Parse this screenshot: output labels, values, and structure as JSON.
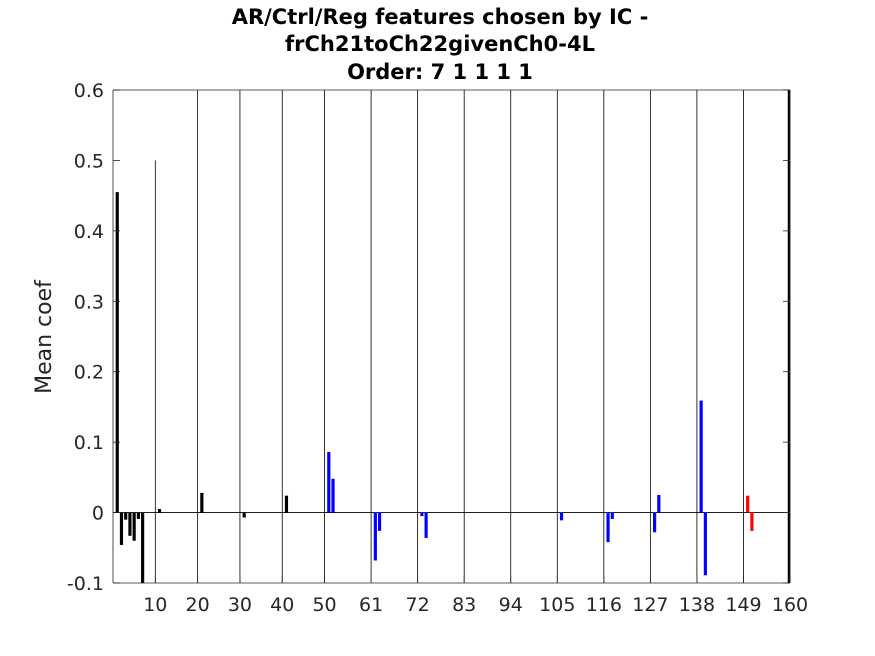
{
  "chart_data": {
    "type": "bar",
    "title": [
      "AR/Ctrl/Reg features chosen by IC -",
      "frCh21toCh22givenCh0-4L",
      "Order: 7 1 1 1 1"
    ],
    "xlabel": "",
    "ylabel": "Mean coef",
    "xlim": [
      0,
      160
    ],
    "ylim": [
      -0.1,
      0.6
    ],
    "grid": "vertical lines at group boundaries",
    "xticks": [
      10,
      20,
      30,
      40,
      50,
      61,
      72,
      83,
      94,
      105,
      116,
      127,
      138,
      149,
      160
    ],
    "yticks": [
      -0.1,
      0,
      0.1,
      0.2,
      0.3,
      0.4,
      0.5,
      0.6
    ],
    "ytick_labels": [
      "-0.1",
      "0",
      "0.1",
      "0.2",
      "0.3",
      "0.4",
      "0.5",
      "0.6"
    ],
    "group_boundaries": [
      10,
      20,
      30,
      40,
      50,
      61,
      72,
      83,
      94,
      105,
      116,
      127,
      138,
      149,
      160
    ],
    "special_lines": [
      {
        "x": 10,
        "from": -0.1,
        "to": 0.5
      },
      {
        "x": 160,
        "from": -0.1,
        "to": 0.6
      }
    ],
    "colors": {
      "AR": "#000000",
      "Ctrl": "#0000ff",
      "Reg": "#ff0000"
    },
    "series": [
      {
        "group": "AR",
        "color": "#000000",
        "x": [
          1,
          2,
          3,
          4,
          5,
          6,
          7,
          11,
          21,
          31,
          41
        ],
        "values": [
          0.455,
          -0.046,
          -0.01,
          -0.033,
          -0.04,
          -0.009,
          -0.1,
          0.005,
          0.028,
          -0.007,
          0.024
        ]
      },
      {
        "group": "Ctrl",
        "color": "#0000ff",
        "x": [
          51,
          52,
          62,
          63,
          73,
          74,
          106,
          117,
          118,
          128,
          129,
          139,
          140
        ],
        "values": [
          0.086,
          0.048,
          -0.068,
          -0.026,
          -0.005,
          -0.036,
          -0.011,
          -0.042,
          -0.009,
          -0.028,
          0.025,
          0.159,
          -0.089
        ]
      },
      {
        "group": "Reg",
        "color": "#ff0000",
        "x": [
          150,
          151
        ],
        "values": [
          0.024,
          -0.026
        ]
      }
    ]
  }
}
